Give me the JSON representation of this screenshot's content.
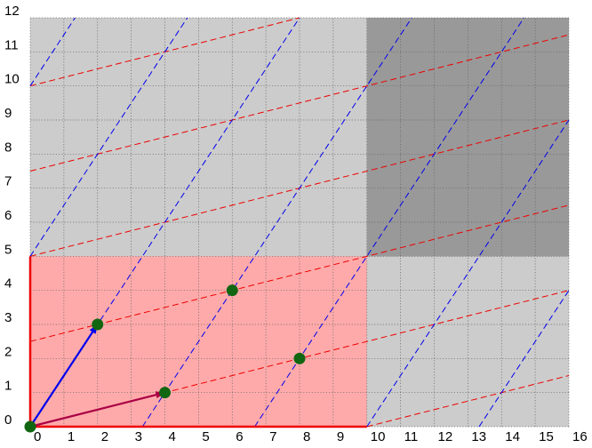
{
  "chart_data": {
    "type": "lattice-diagram",
    "xlim": [
      0,
      16
    ],
    "ylim": [
      0,
      12
    ],
    "x_tick_labels": [
      "0",
      "1",
      "2",
      "3",
      "4",
      "5",
      "6",
      "7",
      "8",
      "9",
      "10",
      "11",
      "12",
      "13",
      "14",
      "15",
      "16"
    ],
    "y_tick_labels": [
      "0",
      "1",
      "2",
      "3",
      "4",
      "5",
      "6",
      "7",
      "8",
      "9",
      "10",
      "11",
      "12"
    ],
    "grid": true,
    "regions": [
      {
        "name": "background",
        "x": [
          0,
          16
        ],
        "y": [
          0,
          12
        ],
        "color": "#cccccc"
      },
      {
        "name": "fundamental-domain",
        "x": [
          0,
          10
        ],
        "y": [
          0,
          5
        ],
        "color": "#ffaaaa"
      },
      {
        "name": "dark-block",
        "x": [
          10,
          16
        ],
        "y": [
          5,
          12
        ],
        "color": "#999999"
      }
    ],
    "basis_vectors": [
      {
        "name": "v1",
        "from": [
          0,
          0
        ],
        "to": [
          4,
          1
        ],
        "color": "#aa0044"
      },
      {
        "name": "v2",
        "from": [
          0,
          0
        ],
        "to": [
          2,
          3
        ],
        "color": "#0000ee"
      }
    ],
    "lattice_points": [
      [
        0,
        0
      ],
      [
        4,
        1
      ],
      [
        2,
        3
      ],
      [
        8,
        2
      ],
      [
        6,
        4
      ]
    ],
    "point_color": "#116611",
    "domain_border_color": "#ee0000",
    "red_lines": {
      "slope": 0.25,
      "intercepts_at_x0": [
        -7.5,
        -5,
        -2.5,
        0,
        2.5,
        5,
        7.5,
        10,
        12.5
      ],
      "color": "#ee0000",
      "style": "dashed"
    },
    "blue_lines": {
      "slope": 1.5,
      "x_intercepts": [
        -6.66667,
        -3.33333,
        0,
        3.33333,
        6.66667,
        10,
        13.33333
      ],
      "color": "#0000ee",
      "style": "dashed"
    }
  }
}
